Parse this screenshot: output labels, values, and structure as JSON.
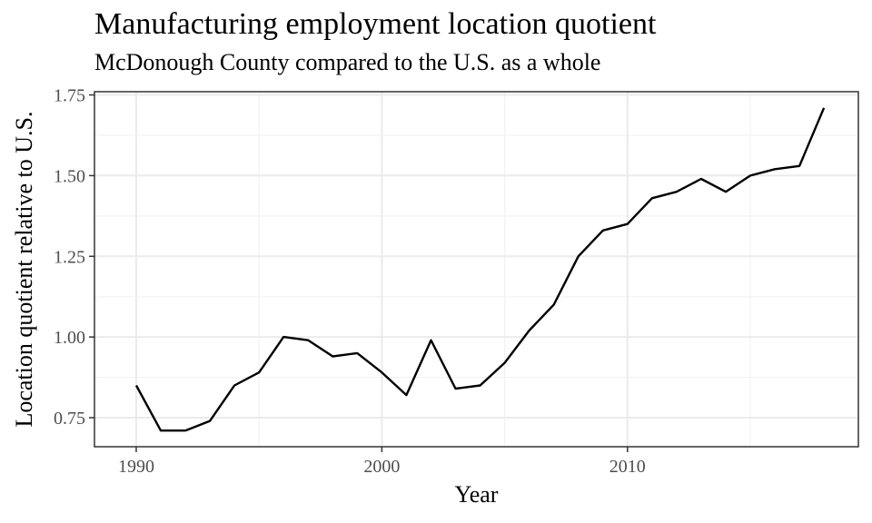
{
  "chart_data": {
    "type": "line",
    "title": "Manufacturing employment location quotient",
    "subtitle": "McDonough County compared to the U.S. as a whole",
    "xlabel": "Year",
    "ylabel": "Location quotient relative to U.S.",
    "xlim": [
      1988.3,
      2019.4
    ],
    "ylim": [
      0.66,
      1.76
    ],
    "x_ticks": [
      1990,
      2000,
      2010
    ],
    "y_ticks": [
      0.75,
      1.0,
      1.25,
      1.5,
      1.75
    ],
    "x_tick_labels": [
      "1990",
      "2000",
      "2010"
    ],
    "y_tick_labels": [
      "0.75",
      "1.00",
      "1.25",
      "1.50",
      "1.75"
    ],
    "grid": true,
    "legend": "none",
    "line_color": "#000000",
    "series": [
      {
        "x": [
          1990,
          1991,
          1992,
          1993,
          1994,
          1995,
          1996,
          1997,
          1998,
          1999,
          2000,
          2001,
          2002,
          2003,
          2004,
          2005,
          2006,
          2007,
          2008,
          2009,
          2010,
          2011,
          2012,
          2013,
          2014,
          2015,
          2016,
          2017,
          2018
        ],
        "values": [
          0.85,
          0.71,
          0.71,
          0.74,
          0.85,
          0.89,
          1.0,
          0.99,
          0.94,
          0.95,
          0.89,
          0.82,
          0.99,
          0.84,
          0.85,
          0.92,
          1.02,
          1.1,
          1.25,
          1.33,
          1.35,
          1.43,
          1.45,
          1.49,
          1.45,
          1.5,
          1.52,
          1.53,
          1.71
        ]
      }
    ]
  }
}
